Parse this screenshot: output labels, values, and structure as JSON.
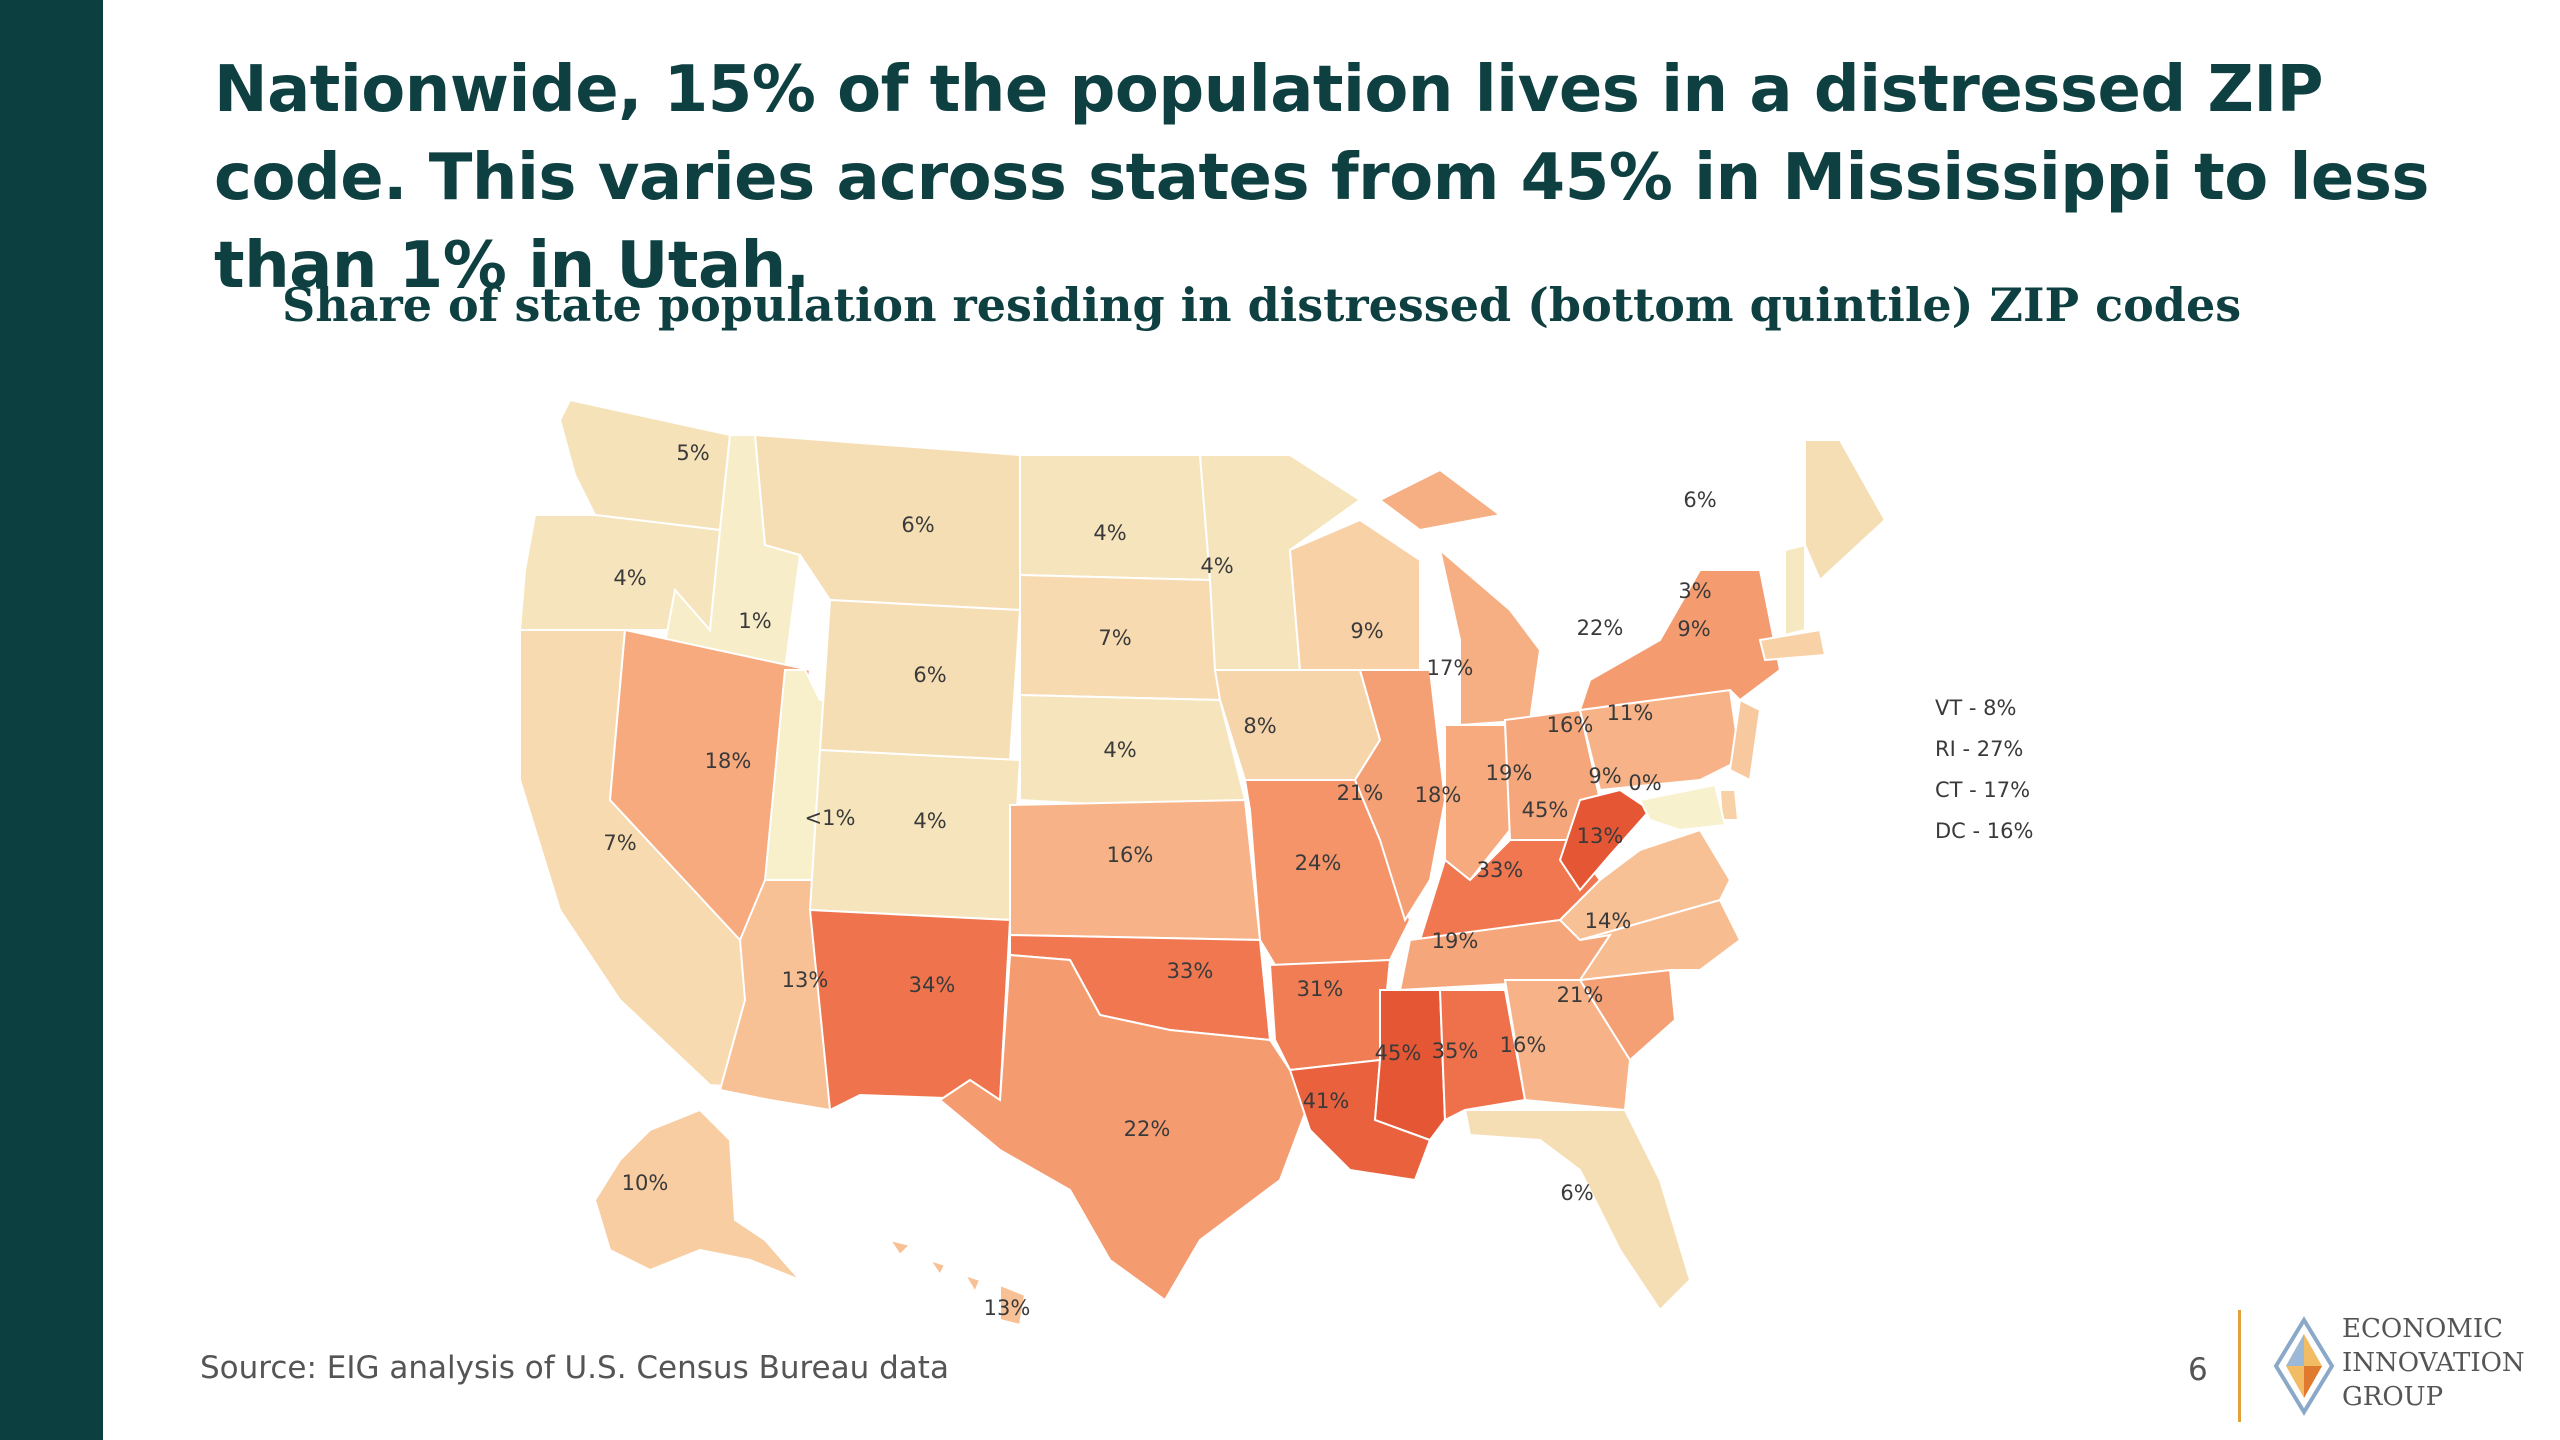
{
  "slide": {
    "headline": "Nationwide, 15% of the population lives in a distressed ZIP code. This varies across states from 45% in Mississippi to less than 1% in Utah.",
    "subtitle": "Share of state population residing in distressed (bottom quintile) ZIP codes",
    "source": "Source: EIG analysis of U.S. Census Bureau data",
    "page_number": "6",
    "logo": {
      "line1": "ECONOMIC",
      "line2": "INNOVATION",
      "line3": "GROUP"
    },
    "colors": {
      "left_bar": "#0c3f3f",
      "headline": "#0e3f41",
      "logo_accent": "#e2a23a"
    }
  },
  "map": {
    "small_states": [
      {
        "label": "VT - 8%"
      },
      {
        "label": "RI - 27%"
      },
      {
        "label": "CT - 17%"
      },
      {
        "label": "DC - 16%"
      }
    ],
    "states": [
      {
        "code": "WA",
        "label": "5%",
        "value": 5
      },
      {
        "code": "OR",
        "label": "4%",
        "value": 4
      },
      {
        "code": "CA",
        "label": "7%",
        "value": 7
      },
      {
        "code": "ID",
        "label": "1%",
        "value": 1
      },
      {
        "code": "NV",
        "label": "18%",
        "value": 18
      },
      {
        "code": "UT",
        "label": "<1%",
        "value": 0.5
      },
      {
        "code": "AZ",
        "label": "13%",
        "value": 13
      },
      {
        "code": "MT",
        "label": "6%",
        "value": 6
      },
      {
        "code": "WY",
        "label": "6%",
        "value": 6
      },
      {
        "code": "CO",
        "label": "4%",
        "value": 4
      },
      {
        "code": "NM",
        "label": "34%",
        "value": 34
      },
      {
        "code": "ND",
        "label": "4%",
        "value": 4
      },
      {
        "code": "SD",
        "label": "7%",
        "value": 7
      },
      {
        "code": "NE",
        "label": "4%",
        "value": 4
      },
      {
        "code": "KS",
        "label": "16%",
        "value": 16
      },
      {
        "code": "OK",
        "label": "33%",
        "value": 33
      },
      {
        "code": "TX",
        "label": "22%",
        "value": 22
      },
      {
        "code": "MN",
        "label": "4%",
        "value": 4
      },
      {
        "code": "IA",
        "label": "8%",
        "value": 8
      },
      {
        "code": "MO",
        "label": "24%",
        "value": 24
      },
      {
        "code": "AR",
        "label": "31%",
        "value": 31
      },
      {
        "code": "LA",
        "label": "41%",
        "value": 41
      },
      {
        "code": "WI",
        "label": "9%",
        "value": 9
      },
      {
        "code": "IL",
        "label": "21%",
        "value": 21
      },
      {
        "code": "MI",
        "label": "17%",
        "value": 17
      },
      {
        "code": "IN",
        "label": "18%",
        "value": 18
      },
      {
        "code": "OH",
        "label": "19%",
        "value": 19
      },
      {
        "code": "KY",
        "label": "33%",
        "value": 33
      },
      {
        "code": "TN",
        "label": "19%",
        "value": 19
      },
      {
        "code": "MS",
        "label": "45%",
        "value": 45
      },
      {
        "code": "AL",
        "label": "35%",
        "value": 35
      },
      {
        "code": "GA",
        "label": "16%",
        "value": 16
      },
      {
        "code": "FL",
        "label": "6%",
        "value": 6
      },
      {
        "code": "SC",
        "label": "21%",
        "value": 21
      },
      {
        "code": "NC",
        "label": "14%",
        "value": 14
      },
      {
        "code": "VA",
        "label": "13%",
        "value": 13
      },
      {
        "code": "WV",
        "label": "45%",
        "value": 45
      },
      {
        "code": "PA",
        "label": "16%",
        "value": 16
      },
      {
        "code": "NY",
        "label": "22%",
        "value": 22
      },
      {
        "code": "NJ",
        "label": "11%",
        "value": 11
      },
      {
        "code": "DE",
        "label": "9%",
        "value": 9
      },
      {
        "code": "MD",
        "label": "0%",
        "value": 0
      },
      {
        "code": "MA",
        "label": "9%",
        "value": 9
      },
      {
        "code": "NH",
        "label": "3%",
        "value": 3
      },
      {
        "code": "ME",
        "label": "6%",
        "value": 6
      },
      {
        "code": "AK",
        "label": "10%",
        "value": 10
      },
      {
        "code": "HI",
        "label": "13%",
        "value": 13
      }
    ]
  }
}
